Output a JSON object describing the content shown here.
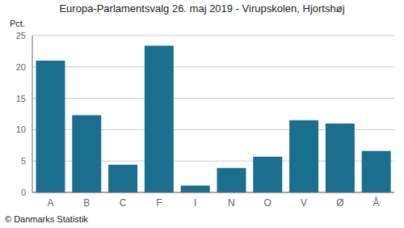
{
  "chart_data": {
    "type": "bar",
    "title": "Europa-Parlamentsvalg 26. maj 2019 - Virupskolen, Hjortshøj",
    "ylabel": "Pct.",
    "annotations": [
      "© Danmarks Statistik"
    ],
    "categories": [
      "A",
      "B",
      "C",
      "F",
      "I",
      "N",
      "O",
      "V",
      "Ø",
      "Å"
    ],
    "values": [
      21.0,
      12.3,
      4.4,
      23.4,
      1.1,
      3.9,
      5.7,
      11.5,
      11.0,
      6.6
    ],
    "color": "#1a6e8e",
    "ylim": [
      0,
      25
    ],
    "yticks": [
      0,
      5,
      10,
      15,
      20,
      25
    ],
    "grid": true
  }
}
